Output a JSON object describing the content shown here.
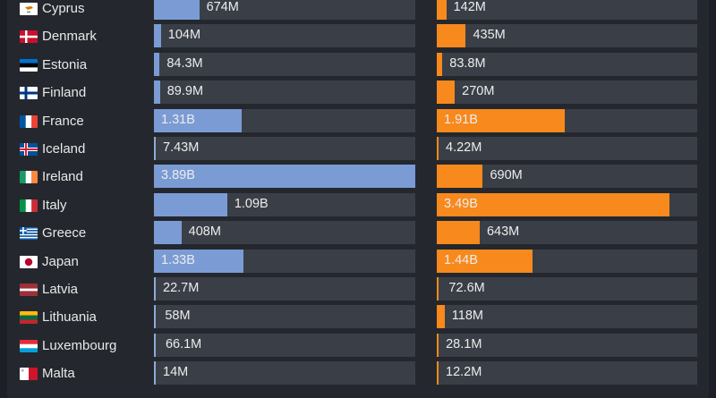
{
  "rows": [
    {
      "country": "Cyprus",
      "flag": "cyprus-flag-icon",
      "left_label": "674M",
      "left_value": 674000000,
      "right_label": "142M",
      "right_value": 142000000
    },
    {
      "country": "Denmark",
      "flag": "denmark-flag-icon",
      "left_label": "104M",
      "left_value": 104000000,
      "right_label": "435M",
      "right_value": 435000000
    },
    {
      "country": "Estonia",
      "flag": "estonia-flag-icon",
      "left_label": "84.3M",
      "left_value": 84300000,
      "right_label": "83.8M",
      "right_value": 83800000
    },
    {
      "country": "Finland",
      "flag": "finland-flag-icon",
      "left_label": "89.9M",
      "left_value": 89900000,
      "right_label": "270M",
      "right_value": 270000000
    },
    {
      "country": "France",
      "flag": "france-flag-icon",
      "left_label": "1.31B",
      "left_value": 1310000000,
      "right_label": "1.91B",
      "right_value": 1910000000
    },
    {
      "country": "Iceland",
      "flag": "iceland-flag-icon",
      "left_label": "7.43M",
      "left_value": 7430000,
      "right_label": "4.22M",
      "right_value": 4220000
    },
    {
      "country": "Ireland",
      "flag": "ireland-flag-icon",
      "left_label": "3.89B",
      "left_value": 3890000000,
      "right_label": "690M",
      "right_value": 690000000
    },
    {
      "country": "Italy",
      "flag": "italy-flag-icon",
      "left_label": "1.09B",
      "left_value": 1090000000,
      "right_label": "3.49B",
      "right_value": 3490000000
    },
    {
      "country": "Greece",
      "flag": "greece-flag-icon",
      "left_label": "408M",
      "left_value": 408000000,
      "right_label": "643M",
      "right_value": 643000000
    },
    {
      "country": "Japan",
      "flag": "japan-flag-icon",
      "left_label": "1.33B",
      "left_value": 1330000000,
      "right_label": "1.44B",
      "right_value": 1440000000
    },
    {
      "country": "Latvia",
      "flag": "latvia-flag-icon",
      "left_label": "22.7M",
      "left_value": 22700000,
      "right_label": "72.6M",
      "right_value": 72600000
    },
    {
      "country": "Lithuania",
      "flag": "lithuania-flag-icon",
      "left_label": "58M",
      "left_value": 58000000,
      "right_label": "118M",
      "right_value": 118000000
    },
    {
      "country": "Luxembourg",
      "flag": "luxembourg-flag-icon",
      "left_label": "66.1M",
      "left_value": 66100000,
      "right_label": "28.1M",
      "right_value": 28100000
    },
    {
      "country": "Malta",
      "flag": "malta-flag-icon",
      "left_label": "14M",
      "left_value": 14000000,
      "right_label": "12.2M",
      "right_value": 12200000
    }
  ],
  "scale": {
    "left_max": 3890000000,
    "right_max": 3900000000
  },
  "colors": {
    "left_bar": "#7b9bd4",
    "right_bar": "#f7891d",
    "track": "#3a3f47",
    "background": "#24282e"
  }
}
